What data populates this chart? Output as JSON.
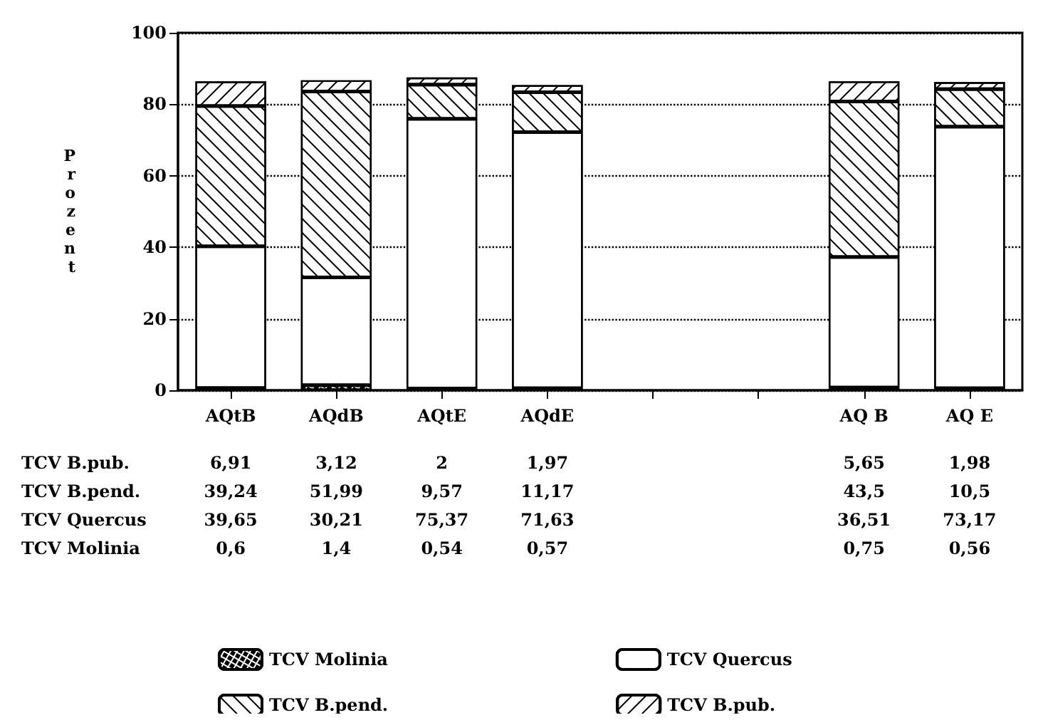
{
  "chart_data": {
    "type": "bar",
    "stacked": true,
    "ylabel": "Prozent",
    "categories": [
      "AQtB",
      "AQdB",
      "AQtE",
      "AQdE",
      null,
      null,
      "AQ B",
      "AQ E"
    ],
    "series": [
      {
        "name": "TCV Molinia",
        "color": "#ffffff",
        "values": [
          0.6,
          1.4,
          0.54,
          0.57,
          null,
          null,
          0.75,
          0.56
        ],
        "value_labels": [
          "0,6",
          "1,4",
          "0,54",
          "0,57",
          null,
          null,
          "0,75",
          "0,56"
        ]
      },
      {
        "name": "TCV Quercus",
        "color": "#ffffff",
        "values": [
          39.65,
          30.21,
          75.37,
          71.63,
          null,
          null,
          36.51,
          73.17
        ],
        "value_labels": [
          "39,65",
          "30,21",
          "75,37",
          "71,63",
          null,
          null,
          "36,51",
          "73,17"
        ]
      },
      {
        "name": "TCV B.pend.",
        "color": "#ffffff",
        "values": [
          39.24,
          51.99,
          9.57,
          11.17,
          null,
          null,
          43.5,
          10.5
        ],
        "value_labels": [
          "39,24",
          "51,99",
          "9,57",
          "11,17",
          null,
          null,
          "43,5",
          "10,5"
        ]
      },
      {
        "name": "TCV B.pub.",
        "color": "#ffffff",
        "values": [
          6.91,
          3.12,
          2,
          1.97,
          null,
          null,
          5.65,
          1.98
        ],
        "value_labels": [
          "6,91",
          "3,12",
          "2",
          "1,97",
          null,
          null,
          "5,65",
          "1,98"
        ]
      }
    ],
    "ylim": [
      0,
      100
    ],
    "yticks": [
      0,
      20,
      40,
      60,
      80,
      100
    ],
    "grid": "y",
    "legend": "bottom"
  }
}
